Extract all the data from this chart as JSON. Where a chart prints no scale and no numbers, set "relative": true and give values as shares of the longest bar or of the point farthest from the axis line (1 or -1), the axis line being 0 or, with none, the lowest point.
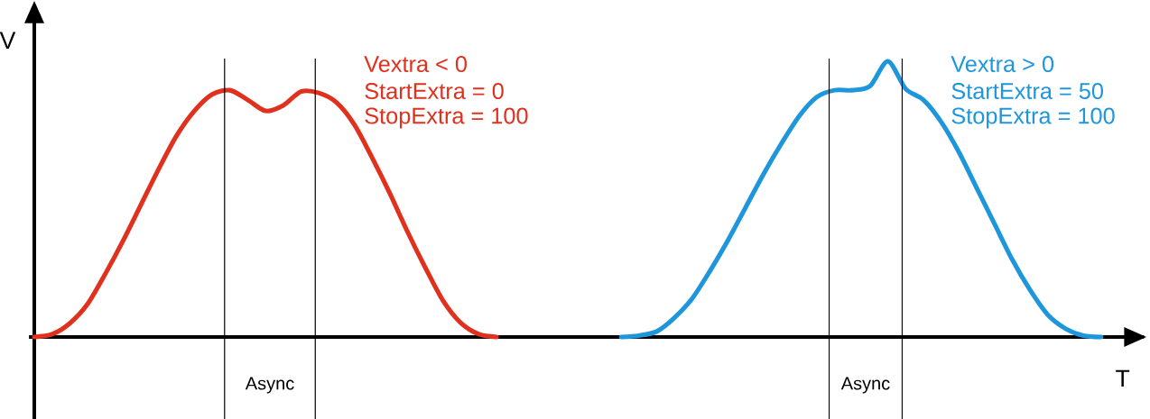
{
  "chart_data": {
    "type": "line",
    "relative": true,
    "xlabel": "T",
    "ylabel": "V",
    "categories": [
      null,
      null,
      null,
      null,
      null,
      null,
      null,
      null,
      null,
      null,
      null,
      null,
      null,
      null,
      null,
      null,
      null,
      null,
      null,
      null,
      null,
      null,
      null,
      null,
      null,
      null,
      null,
      null,
      null,
      null,
      null,
      null,
      null,
      null,
      null,
      null,
      null,
      null,
      null,
      null,
      null,
      null,
      null,
      null,
      null,
      null,
      null,
      null,
      null,
      null,
      null,
      null,
      null,
      null,
      null,
      null,
      null,
      null,
      null,
      null,
      null
    ],
    "series": [
      {
        "name": "Vextra < 0",
        "color": "#e0301e",
        "values": [
          0,
          0.01,
          0.05,
          0.12,
          0.23,
          0.35,
          0.48,
          0.61,
          0.73,
          0.82,
          0.88,
          0.895,
          0.86,
          0.82,
          0.84,
          0.89,
          0.885,
          0.85,
          0.77,
          0.65,
          0.52,
          0.38,
          0.25,
          0.13,
          0.05,
          0.01,
          0,
          null,
          null,
          null,
          null,
          null,
          null,
          null,
          null,
          null,
          null,
          null,
          null,
          null,
          null,
          null,
          null,
          null,
          null,
          null,
          null,
          null,
          null,
          null,
          null,
          null,
          null,
          null,
          null,
          null,
          null,
          null,
          null,
          null,
          null
        ]
      },
      {
        "name": "Vextra > 0",
        "color": "#1e96dc",
        "values": [
          null,
          null,
          null,
          null,
          null,
          null,
          null,
          null,
          null,
          null,
          null,
          null,
          null,
          null,
          null,
          null,
          null,
          null,
          null,
          null,
          null,
          null,
          null,
          null,
          null,
          null,
          null,
          null,
          null,
          null,
          null,
          null,
          null,
          0,
          0.005,
          0.02,
          0.07,
          0.14,
          0.24,
          0.35,
          0.47,
          0.59,
          0.7,
          0.8,
          0.87,
          0.895,
          0.895,
          0.91,
          1,
          0.9,
          0.86,
          0.78,
          0.67,
          0.54,
          0.41,
          0.28,
          0.17,
          0.08,
          0.03,
          0.005,
          0
        ]
      }
    ],
    "annotations": [
      "StartExtra = 0",
      "StopExtra = 100",
      "StartExtra = 50",
      "StopExtra = 100",
      "Async",
      "Async"
    ],
    "line_style": "solid",
    "marker": "none"
  }
}
